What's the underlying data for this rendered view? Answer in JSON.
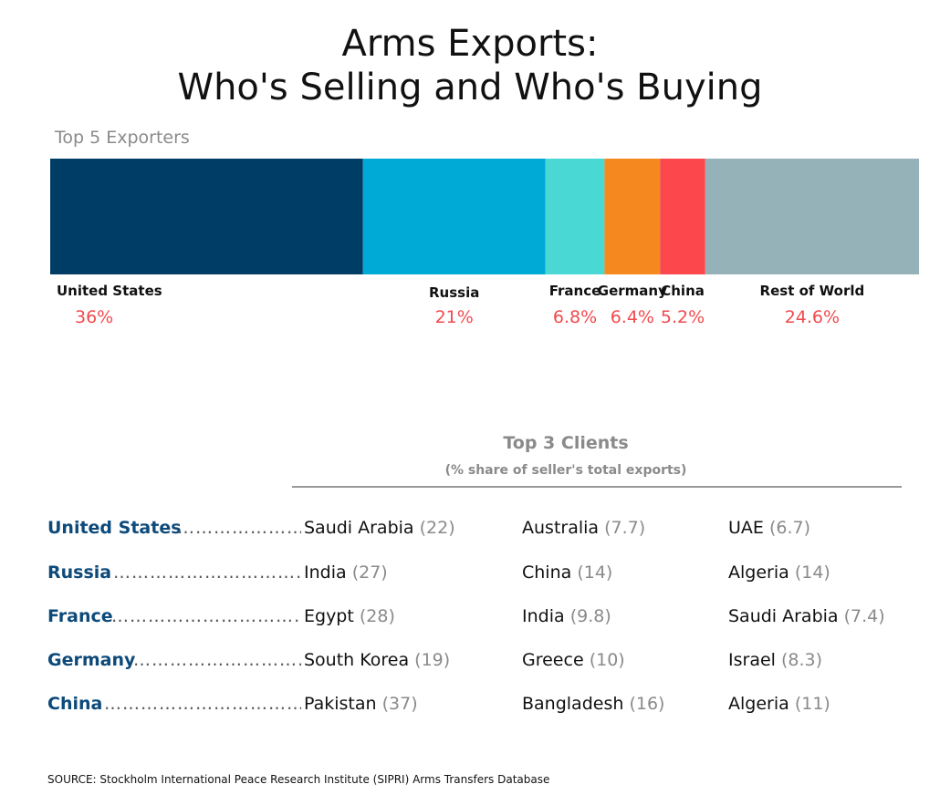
{
  "title_line1": "Arms Exports:",
  "title_line2": "Who's Selling and Who's Buying",
  "exporters_heading": "Top 5 Exporters",
  "chart_data": {
    "type": "bar",
    "orientation": "horizontal-stacked",
    "categories": [
      "United States",
      "Russia",
      "France",
      "Germany",
      "China",
      "Rest of World"
    ],
    "values": [
      36,
      21,
      6.8,
      6.4,
      5.2,
      24.6
    ],
    "value_labels": [
      "36%",
      "21%",
      "6.8%",
      "6.4%",
      "5.2%",
      "24.6%"
    ],
    "colors": [
      "#003d66",
      "#00aad6",
      "#4ad8d4",
      "#f5891f",
      "#fc484c",
      "#94b2b8"
    ],
    "total": 100
  },
  "clients": {
    "title": "Top 3 Clients",
    "subtitle": "(% share of seller's total exports)",
    "rows": [
      {
        "seller": "United States",
        "clients": [
          {
            "name": "Saudi Arabia",
            "pct": "(22)"
          },
          {
            "name": "Australia",
            "pct": "(7.7)"
          },
          {
            "name": "UAE",
            "pct": "(6.7)"
          }
        ]
      },
      {
        "seller": "Russia",
        "clients": [
          {
            "name": "India",
            "pct": "(27)"
          },
          {
            "name": "China",
            "pct": "(14)"
          },
          {
            "name": "Algeria",
            "pct": "(14)"
          }
        ]
      },
      {
        "seller": "France",
        "clients": [
          {
            "name": "Egypt",
            "pct": "(28)"
          },
          {
            "name": "India",
            "pct": "(9.8)"
          },
          {
            "name": "Saudi Arabia",
            "pct": "(7.4)"
          }
        ]
      },
      {
        "seller": "Germany",
        "clients": [
          {
            "name": "South Korea",
            "pct": "(19)"
          },
          {
            "name": "Greece",
            "pct": "(10)"
          },
          {
            "name": "Israel",
            "pct": "(8.3)"
          }
        ]
      },
      {
        "seller": "China",
        "clients": [
          {
            "name": "Pakistan",
            "pct": "(37)"
          },
          {
            "name": "Bangladesh",
            "pct": "(16)"
          },
          {
            "name": "Algeria",
            "pct": "(11)"
          }
        ]
      }
    ]
  },
  "source": "SOURCE: Stockholm International Peace Research Institute (SIPRI) Arms Transfers Database"
}
